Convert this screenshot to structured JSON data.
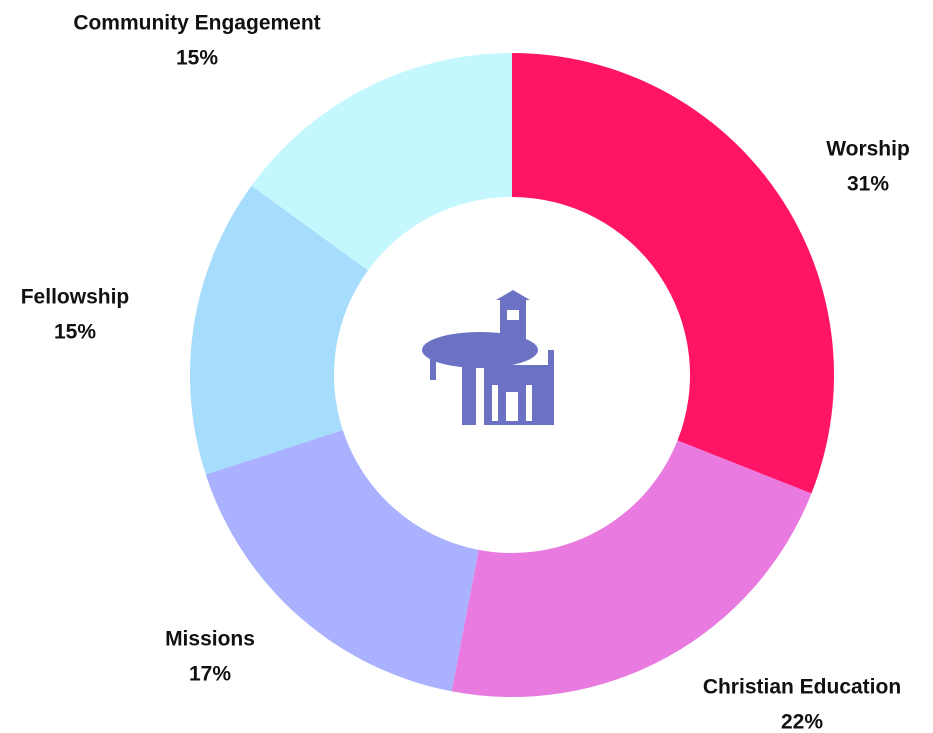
{
  "chart_data": {
    "type": "pie",
    "donut": true,
    "categories": [
      "Worship",
      "Christian Education",
      "Missions",
      "Fellowship",
      "Community Engagement"
    ],
    "values": [
      31,
      22,
      17,
      15,
      15
    ],
    "value_labels": [
      "31%",
      "22%",
      "17%",
      "15%",
      "15%"
    ],
    "colors": [
      "#ff1466",
      "#e87ae0",
      "#aab2ff",
      "#a6dcfc",
      "#c5f8fe"
    ]
  }
}
